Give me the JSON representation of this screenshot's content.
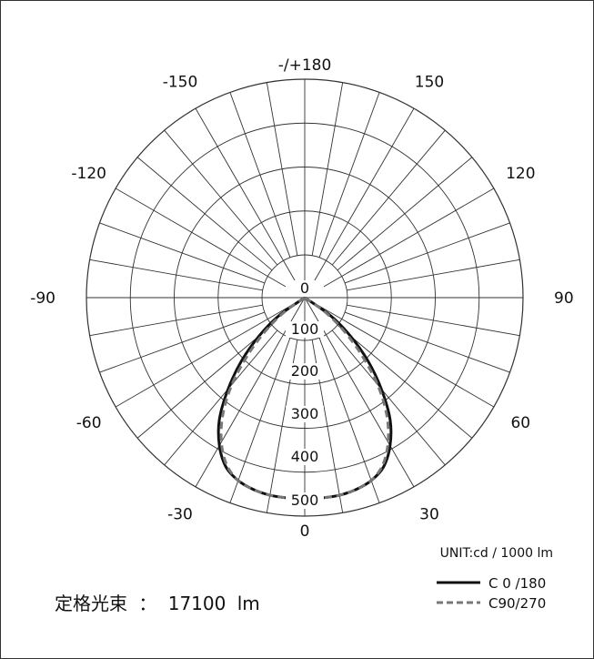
{
  "chart_data": {
    "type": "polar-line",
    "unit_label": "UNIT:cd / 1000 lm",
    "radial_ticks": [
      "0",
      "100",
      "200",
      "300",
      "400",
      "500"
    ],
    "radial_max": 550,
    "angle_labels": [
      {
        "angle": 180,
        "text": "-/+180"
      },
      {
        "angle": -150,
        "text": "-150"
      },
      {
        "angle": 150,
        "text": "150"
      },
      {
        "angle": -120,
        "text": "-120"
      },
      {
        "angle": 120,
        "text": "120"
      },
      {
        "angle": -90,
        "text": "-90"
      },
      {
        "angle": 90,
        "text": "90"
      },
      {
        "angle": -60,
        "text": "-60"
      },
      {
        "angle": 60,
        "text": "60"
      },
      {
        "angle": -30,
        "text": "-30"
      },
      {
        "angle": 30,
        "text": "30"
      },
      {
        "angle": 0,
        "text": "0"
      }
    ],
    "grid": true,
    "series": [
      {
        "name": "C 0 /180",
        "style": "solid",
        "color": "#111111",
        "points": [
          [
            -60,
            0
          ],
          [
            -55,
            80
          ],
          [
            -50,
            150
          ],
          [
            -45,
            225
          ],
          [
            -40,
            300
          ],
          [
            -35,
            375
          ],
          [
            -30,
            430
          ],
          [
            -25,
            470
          ],
          [
            -20,
            490
          ],
          [
            -15,
            500
          ],
          [
            -10,
            505
          ],
          [
            -5,
            506
          ],
          [
            0,
            507
          ],
          [
            5,
            506
          ],
          [
            10,
            505
          ],
          [
            15,
            500
          ],
          [
            20,
            490
          ],
          [
            25,
            470
          ],
          [
            30,
            430
          ],
          [
            35,
            375
          ],
          [
            40,
            300
          ],
          [
            45,
            225
          ],
          [
            50,
            150
          ],
          [
            55,
            80
          ],
          [
            60,
            0
          ]
        ]
      },
      {
        "name": "C90/270",
        "style": "dashed",
        "color": "#777777",
        "points": [
          [
            -60,
            0
          ],
          [
            -55,
            60
          ],
          [
            -50,
            125
          ],
          [
            -45,
            200
          ],
          [
            -40,
            285
          ],
          [
            -35,
            360
          ],
          [
            -30,
            420
          ],
          [
            -25,
            465
          ],
          [
            -20,
            490
          ],
          [
            -15,
            500
          ],
          [
            -10,
            505
          ],
          [
            -5,
            506
          ],
          [
            0,
            507
          ],
          [
            5,
            506
          ],
          [
            10,
            505
          ],
          [
            15,
            500
          ],
          [
            20,
            490
          ],
          [
            25,
            465
          ],
          [
            30,
            420
          ],
          [
            35,
            360
          ],
          [
            40,
            285
          ],
          [
            45,
            200
          ],
          [
            50,
            125
          ],
          [
            55,
            60
          ],
          [
            60,
            0
          ]
        ]
      }
    ]
  },
  "legend": [
    {
      "label": "C 0 /180",
      "style": "solid",
      "color": "#111111"
    },
    {
      "label": "C90/270",
      "style": "dashed",
      "color": "#777777"
    }
  ],
  "rated_flux": {
    "label": "定格光束",
    "separator": "：",
    "value": "17100",
    "unit": "lm"
  }
}
